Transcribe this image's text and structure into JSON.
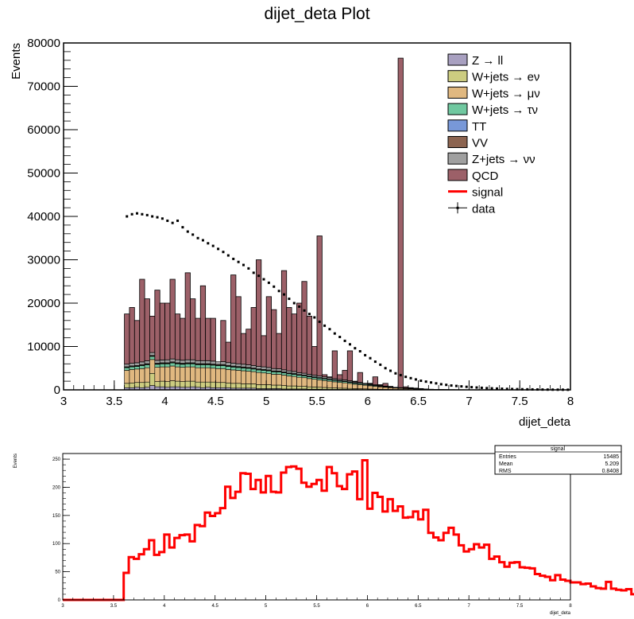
{
  "chart_data": [
    {
      "type": "bar",
      "title": "dijet_deta Plot",
      "xlabel": "dijet_deta",
      "ylabel": "Events",
      "xlim": [
        3,
        8
      ],
      "ylim": [
        0,
        80000
      ],
      "x_ticks": [
        "3",
        "3.5",
        "4",
        "4.5",
        "5",
        "5.5",
        "6",
        "6.5",
        "7",
        "7.5",
        "8"
      ],
      "y_ticks": [
        "0",
        "10000",
        "20000",
        "30000",
        "40000",
        "50000",
        "60000",
        "70000",
        "80000"
      ],
      "legend_position": "top-right",
      "legend": [
        {
          "label": "Z → ll",
          "color": "#a8a0c0",
          "kind": "box"
        },
        {
          "label": "W+jets → eν",
          "color": "#cccc80",
          "kind": "box"
        },
        {
          "label": "W+jets → μν",
          "color": "#e0b880",
          "kind": "box"
        },
        {
          "label": "W+jets → τν",
          "color": "#70c8a0",
          "kind": "box"
        },
        {
          "label": "TT",
          "color": "#7898d8",
          "kind": "box"
        },
        {
          "label": "VV",
          "color": "#8c6450",
          "kind": "box"
        },
        {
          "label": "Z+jets → νν",
          "color": "#a0a0a0",
          "kind": "box"
        },
        {
          "label": "QCD",
          "color": "#9c6068",
          "kind": "box"
        },
        {
          "label": "signal",
          "color": "#ff0000",
          "kind": "line"
        },
        {
          "label": "data",
          "color": "#000000",
          "kind": "marker"
        }
      ],
      "bin_edges_start": 3.6,
      "bin_width": 0.05,
      "stack_total": [
        17500,
        19000,
        16000,
        25500,
        21000,
        17000,
        23000,
        20000,
        20000,
        25500,
        17500,
        16500,
        27000,
        21000,
        16500,
        24000,
        16500,
        16500,
        5000,
        16000,
        11000,
        26500,
        21500,
        13000,
        14000,
        19000,
        30000,
        12500,
        21500,
        18500,
        13000,
        27500,
        19000,
        17500,
        20000,
        25000,
        17000,
        10000,
        35500,
        3500,
        3000,
        9000,
        3500,
        4500,
        9000,
        2000,
        4000,
        1500,
        1500,
        3000,
        1200,
        1500,
        800,
        300,
        76500,
        700,
        500,
        400,
        300,
        200,
        150,
        100,
        100,
        80,
        60,
        50,
        40,
        30,
        20,
        10
      ],
      "stack_components": {
        "Z_ll": [
          500,
          500,
          600,
          500,
          600,
          1000,
          700,
          700,
          600,
          700,
          700,
          600,
          600,
          700,
          600,
          500,
          600,
          500,
          500,
          500,
          500,
          400,
          400,
          400,
          400,
          400,
          300,
          300,
          300,
          300,
          300,
          200,
          200,
          200,
          200,
          200,
          150,
          150,
          150,
          100,
          100,
          100,
          100,
          100,
          80,
          80,
          60,
          50,
          40,
          30,
          30,
          20,
          20,
          10,
          10,
          10,
          10,
          5,
          5,
          5,
          5,
          0,
          0,
          0,
          0,
          0,
          0,
          0,
          0,
          0
        ],
        "W_enu": [
          1000,
          1100,
          1100,
          1200,
          1200,
          2800,
          1200,
          1300,
          1300,
          1400,
          1300,
          1300,
          1400,
          1300,
          1200,
          1300,
          1200,
          1300,
          1200,
          1200,
          1100,
          1100,
          1100,
          1000,
          1000,
          1000,
          900,
          900,
          900,
          800,
          800,
          800,
          700,
          700,
          600,
          600,
          550,
          500,
          450,
          450,
          400,
          350,
          300,
          280,
          250,
          220,
          200,
          180,
          150,
          130,
          110,
          90,
          80,
          70,
          60,
          50,
          40,
          35,
          30,
          25,
          20,
          15,
          10,
          10,
          5,
          5,
          0,
          0,
          0,
          0
        ],
        "W_munu": [
          3000,
          3100,
          3100,
          3200,
          3300,
          3200,
          3300,
          3300,
          3400,
          3400,
          3300,
          3300,
          3300,
          3300,
          3300,
          3300,
          3300,
          3200,
          3200,
          3200,
          3100,
          3100,
          3000,
          3000,
          2900,
          2800,
          2800,
          2700,
          2600,
          2500,
          2500,
          2400,
          2300,
          2200,
          2100,
          2000,
          1900,
          1800,
          1700,
          1600,
          1500,
          1400,
          1300,
          1250,
          1150,
          1000,
          950,
          850,
          750,
          650,
          550,
          480,
          400,
          330,
          280,
          230,
          190,
          150,
          120,
          100,
          80,
          60,
          45,
          35,
          25,
          20,
          15,
          10,
          5,
          5
        ],
        "W_taunu": [
          600,
          600,
          600,
          700,
          700,
          700,
          700,
          700,
          700,
          700,
          700,
          700,
          700,
          700,
          700,
          700,
          700,
          700,
          700,
          700,
          700,
          650,
          650,
          650,
          650,
          600,
          600,
          600,
          580,
          560,
          540,
          520,
          500,
          480,
          460,
          440,
          420,
          400,
          380,
          360,
          340,
          320,
          300,
          280,
          260,
          240,
          220,
          200,
          180,
          160,
          140,
          120,
          100,
          80,
          70,
          60,
          50,
          40,
          30,
          25,
          20,
          15,
          10,
          8,
          6,
          5,
          4,
          3,
          2,
          1
        ],
        "TT": [
          80,
          80,
          80,
          80,
          90,
          90,
          90,
          90,
          90,
          90,
          90,
          90,
          90,
          90,
          90,
          90,
          90,
          90,
          90,
          90,
          90,
          90,
          90,
          90,
          80,
          80,
          80,
          80,
          80,
          80,
          70,
          70,
          70,
          70,
          60,
          60,
          60,
          60,
          50,
          50,
          50,
          40,
          40,
          40,
          40,
          30,
          30,
          30,
          30,
          20,
          20,
          20,
          20,
          10,
          10,
          10,
          10,
          10,
          5,
          5,
          5,
          5,
          0,
          0,
          0,
          0,
          0,
          0,
          0,
          0
        ],
        "VV": [
          150,
          150,
          150,
          150,
          150,
          160,
          160,
          160,
          160,
          160,
          160,
          160,
          160,
          160,
          160,
          160,
          160,
          160,
          160,
          160,
          150,
          150,
          150,
          150,
          150,
          140,
          140,
          140,
          140,
          130,
          130,
          130,
          120,
          120,
          110,
          110,
          100,
          100,
          100,
          90,
          90,
          80,
          80,
          70,
          70,
          60,
          60,
          50,
          50,
          40,
          40,
          30,
          30,
          20,
          20,
          20,
          15,
          15,
          10,
          10,
          5,
          5,
          5,
          0,
          0,
          0,
          0,
          0,
          0,
          0
        ],
        "Zjets_nunu": [
          600,
          600,
          620,
          620,
          650,
          650,
          650,
          650,
          680,
          680,
          680,
          680,
          680,
          680,
          680,
          680,
          680,
          680,
          650,
          650,
          650,
          650,
          620,
          620,
          600,
          600,
          580,
          580,
          560,
          540,
          520,
          500,
          480,
          460,
          440,
          420,
          400,
          380,
          360,
          340,
          320,
          300,
          280,
          260,
          240,
          220,
          200,
          180,
          160,
          140,
          120,
          100,
          90,
          80,
          70,
          60,
          50,
          40,
          30,
          25,
          20,
          15,
          10,
          8,
          6,
          5,
          4,
          3,
          2,
          1
        ]
      },
      "data_points_x": [
        3.625,
        3.675,
        3.725,
        3.775,
        3.825,
        3.875,
        3.925,
        3.975,
        4.025,
        4.075,
        4.125,
        4.175,
        4.225,
        4.275,
        4.325,
        4.375,
        4.425,
        4.475,
        4.525,
        4.575,
        4.625,
        4.675,
        4.725,
        4.775,
        4.825,
        4.875,
        4.925,
        4.975,
        5.025,
        5.075,
        5.125,
        5.175,
        5.225,
        5.275,
        5.325,
        5.375,
        5.425,
        5.475,
        5.525,
        5.575,
        5.625,
        5.675,
        5.725,
        5.775,
        5.825,
        5.875,
        5.925,
        5.975,
        6.025,
        6.075,
        6.125,
        6.175,
        6.225,
        6.275,
        6.325,
        6.375,
        6.425,
        6.475,
        6.525,
        6.575,
        6.625,
        6.675,
        6.725,
        6.775,
        6.825,
        6.875,
        6.925,
        6.975,
        7.025,
        7.075,
        7.125,
        7.175,
        7.225,
        7.275,
        7.325,
        7.375,
        7.425,
        7.475,
        7.525,
        7.575,
        7.625,
        7.675,
        7.725,
        7.775,
        7.825,
        7.875,
        7.925,
        7.975
      ],
      "data_points_y": [
        40000,
        40500,
        40700,
        40500,
        40300,
        40000,
        39800,
        39500,
        39000,
        38500,
        39000,
        37500,
        36500,
        35800,
        35000,
        34500,
        33800,
        33200,
        32500,
        31800,
        31000,
        30200,
        29500,
        28800,
        28000,
        27000,
        26300,
        25500,
        24700,
        23800,
        22800,
        22000,
        21000,
        20000,
        19200,
        18300,
        17500,
        16700,
        15700,
        14800,
        14000,
        13000,
        12200,
        11300,
        10500,
        9600,
        8900,
        8000,
        7300,
        6500,
        5800,
        5000,
        4400,
        3800,
        3400,
        3000,
        2700,
        2400,
        2100,
        1900,
        1700,
        1500,
        1300,
        1150,
        1000,
        900,
        800,
        700,
        620,
        540,
        470,
        400,
        350,
        300,
        260,
        220,
        190,
        160,
        140,
        120,
        100,
        85,
        70,
        60,
        50,
        40,
        35,
        30
      ]
    },
    {
      "type": "line",
      "xlabel": "dijet_deta",
      "ylabel": "Events",
      "xlim": [
        3,
        8
      ],
      "ylim": [
        0,
        260
      ],
      "x_ticks": [
        "3",
        "3.5",
        "4",
        "4.5",
        "5",
        "5.5",
        "6",
        "6.5",
        "7",
        "7.5",
        "8"
      ],
      "y_ticks": [
        "0",
        "50",
        "100",
        "150",
        "200",
        "250"
      ],
      "bin_edges_start": 3.0,
      "bin_width": 0.05,
      "series": [
        {
          "name": "signal",
          "color": "#ff0000",
          "values": [
            0,
            0,
            0,
            0,
            0,
            0,
            0,
            0,
            0,
            0,
            0,
            0,
            48,
            76,
            73,
            81,
            90,
            106,
            80,
            85,
            116,
            93,
            110,
            115,
            116,
            104,
            133,
            131,
            155,
            149,
            154,
            163,
            201,
            181,
            192,
            225,
            224,
            197,
            213,
            191,
            220,
            192,
            191,
            226,
            236,
            237,
            233,
            208,
            201,
            206,
            213,
            194,
            236,
            225,
            202,
            197,
            223,
            228,
            179,
            248,
            162,
            190,
            183,
            157,
            179,
            158,
            166,
            146,
            147,
            157,
            143,
            160,
            119,
            111,
            106,
            119,
            128,
            116,
            97,
            86,
            90,
            99,
            93,
            98,
            73,
            77,
            67,
            59,
            66,
            67,
            58,
            57,
            56,
            46,
            43,
            41,
            35,
            44,
            36,
            34,
            31,
            31,
            28,
            29,
            24,
            21,
            20,
            32,
            20,
            18,
            17,
            19,
            10,
            20,
            17,
            16,
            14,
            11,
            7,
            7,
            11,
            9,
            18,
            14,
            16,
            6,
            9,
            9,
            13,
            13,
            6,
            9,
            4,
            17,
            8,
            12,
            11,
            8,
            7,
            2,
            6,
            3,
            3,
            4,
            4,
            1,
            0,
            0,
            0,
            0,
            2,
            0,
            7,
            2,
            5,
            0,
            0,
            0,
            0,
            0,
            0,
            0,
            0,
            0,
            0,
            0,
            0,
            0,
            0,
            0,
            0,
            0,
            0,
            0,
            0
          ]
        }
      ],
      "stats_box": {
        "title": "signal",
        "rows": [
          {
            "label": "Entries",
            "value": "15485"
          },
          {
            "label": "Mean",
            "value": "5.209"
          },
          {
            "label": "RMS",
            "value": "0.8408"
          }
        ]
      }
    }
  ]
}
